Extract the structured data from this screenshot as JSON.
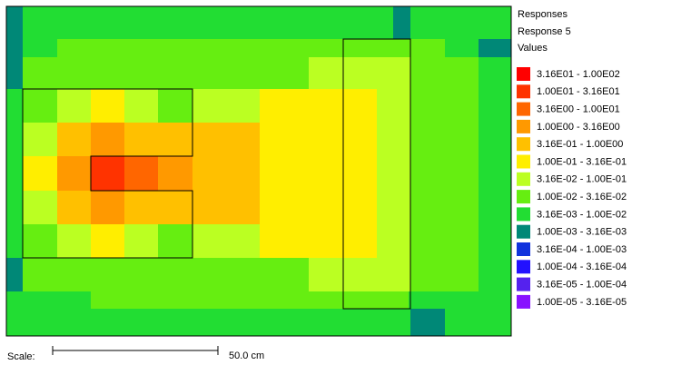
{
  "legend": {
    "title": "Responses",
    "subtitle": "Response 5",
    "heading": "Values",
    "items": [
      {
        "label": "3.16E01 - 1.00E02",
        "color": "#ff0000"
      },
      {
        "label": "1.00E01 - 3.16E01",
        "color": "#ff3300"
      },
      {
        "label": "3.16E00 - 1.00E01",
        "color": "#ff6600"
      },
      {
        "label": "1.00E00 - 3.16E00",
        "color": "#ff9900"
      },
      {
        "label": "3.16E-01 - 1.00E00",
        "color": "#ffc000"
      },
      {
        "label": "1.00E-01 - 3.16E-01",
        "color": "#ffee00"
      },
      {
        "label": "3.16E-02 - 1.00E-01",
        "color": "#bbff22"
      },
      {
        "label": "1.00E-02 - 3.16E-02",
        "color": "#66ee11"
      },
      {
        "label": "3.16E-03 - 1.00E-02",
        "color": "#22dd33"
      },
      {
        "label": "1.00E-03 - 3.16E-03",
        "color": "#008877"
      },
      {
        "label": "3.16E-04 - 1.00E-03",
        "color": "#1133dd"
      },
      {
        "label": "1.00E-04 - 3.16E-04",
        "color": "#2211ff"
      },
      {
        "label": "3.16E-05 - 1.00E-04",
        "color": "#5522ee"
      },
      {
        "label": "1.00E-05 - 3.16E-05",
        "color": "#8811ff"
      }
    ]
  },
  "scale": {
    "label": "Scale:",
    "length": "50.0 cm"
  }
}
